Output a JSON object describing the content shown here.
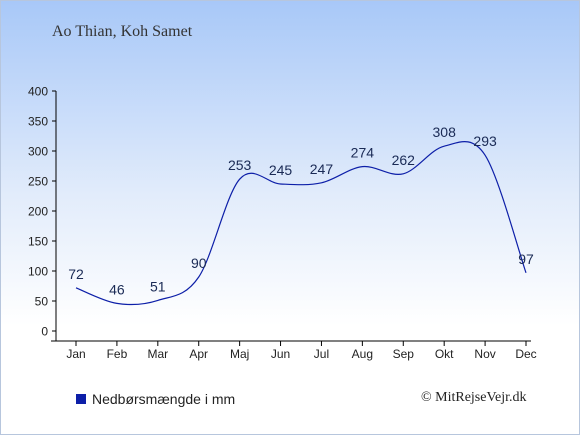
{
  "title": "Ao Thian, Koh Samet",
  "chart_data": {
    "type": "line",
    "categories": [
      "Jan",
      "Feb",
      "Mar",
      "Apr",
      "Maj",
      "Jun",
      "Jul",
      "Aug",
      "Sep",
      "Okt",
      "Nov",
      "Dec"
    ],
    "series": [
      {
        "name": "Nedbørsmængde i mm",
        "values": [
          72,
          46,
          51,
          90,
          253,
          245,
          247,
          274,
          262,
          308,
          293,
          97
        ]
      }
    ],
    "ylim": [
      0,
      400
    ],
    "yticks": [
      0,
      50,
      100,
      150,
      200,
      250,
      300,
      350,
      400
    ],
    "grid": false,
    "legend": "bottom-left",
    "line_color": "#0d1fa8"
  },
  "legend_label": "Nedbørsmængde i mm",
  "credit": "© MitRejseVejr.dk"
}
